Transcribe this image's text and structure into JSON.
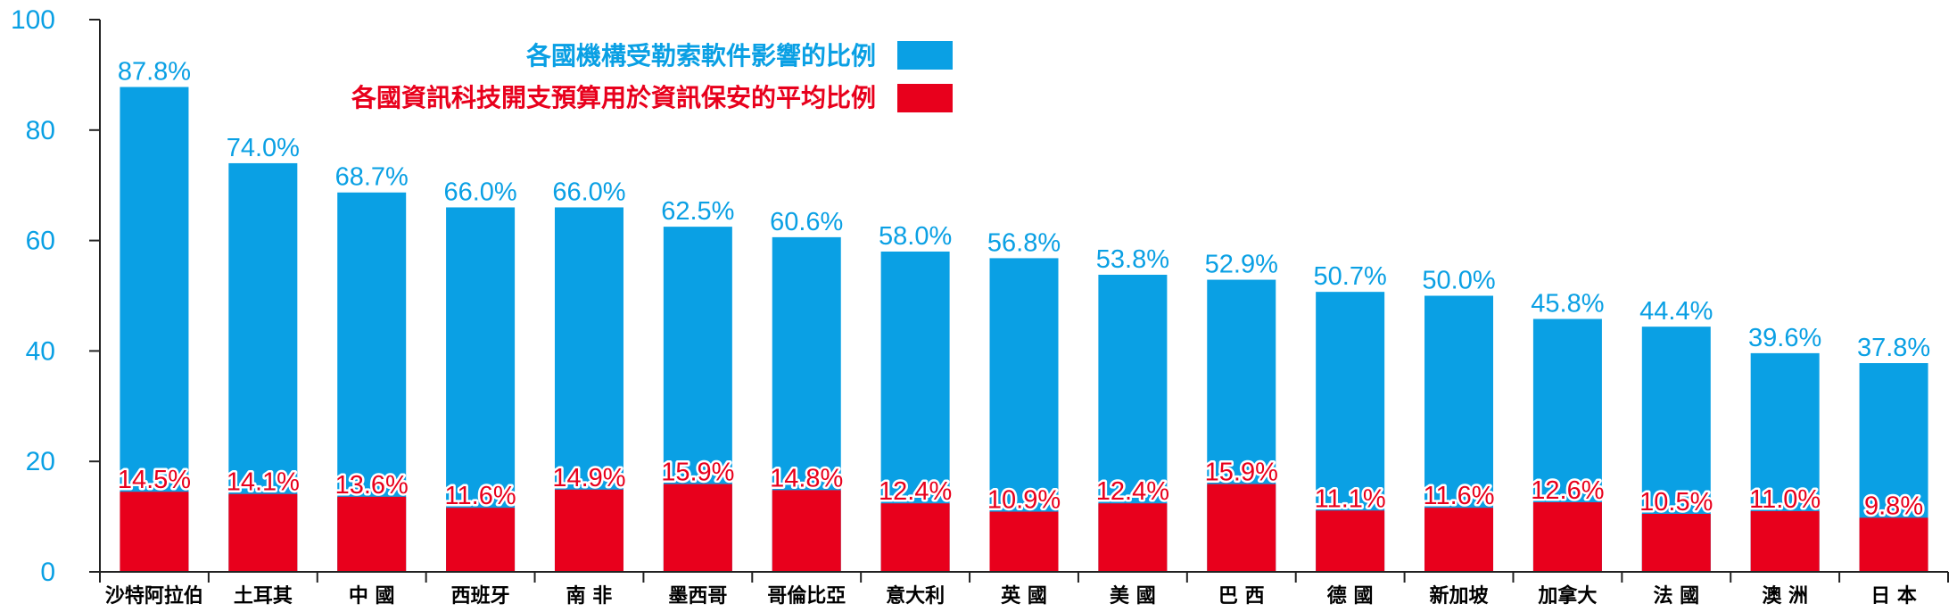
{
  "chart_data": {
    "type": "bar",
    "categories": [
      "沙特阿拉伯",
      "土耳其",
      "中 國",
      "西班牙",
      "南 非",
      "墨西哥",
      "哥倫比亞",
      "意大利",
      "英 國",
      "美 國",
      "巴 西",
      "德 國",
      "新加坡",
      "加拿大",
      "法 國",
      "澳 洲",
      "日 本"
    ],
    "series": [
      {
        "name": "各國機構受勒索軟件影響的比例",
        "color": "#0aa0e4",
        "values": [
          87.8,
          74.0,
          68.7,
          66.0,
          66.0,
          62.5,
          60.6,
          58.0,
          56.8,
          53.8,
          52.9,
          50.7,
          50.0,
          45.8,
          44.4,
          39.6,
          37.8
        ],
        "labels": [
          "87.8%",
          "74.0%",
          "68.7%",
          "66.0%",
          "66.0%",
          "62.5%",
          "60.6%",
          "58.0%",
          "56.8%",
          "53.8%",
          "52.9%",
          "50.7%",
          "50.0%",
          "45.8%",
          "44.4%",
          "39.6%",
          "37.8%"
        ]
      },
      {
        "name": "各國資訊科技開支預算用於資訊保安的平均比例",
        "color": "#e8001c",
        "values": [
          14.5,
          14.1,
          13.6,
          11.6,
          14.9,
          15.9,
          14.8,
          12.4,
          10.9,
          12.4,
          15.9,
          11.1,
          11.6,
          12.6,
          10.5,
          11.0,
          9.8
        ],
        "labels": [
          "14.5%",
          "14.1%",
          "13.6%",
          "11.6%",
          "14.9%",
          "15.9%",
          "14.8%",
          "12.4%",
          "10.9%",
          "12.4%",
          "15.9%",
          "11.1%",
          "11.6%",
          "12.6%",
          "10.5%",
          "11.0%",
          "9.8%"
        ]
      }
    ],
    "ylim": [
      0,
      100
    ],
    "yticks": [
      "0",
      "20",
      "40",
      "60",
      "80",
      "100"
    ],
    "ytick_values": [
      0,
      20,
      40,
      60,
      80,
      100
    ],
    "axis_color": "#0aa0e4",
    "legend_placement": "top-center",
    "grid": false
  }
}
